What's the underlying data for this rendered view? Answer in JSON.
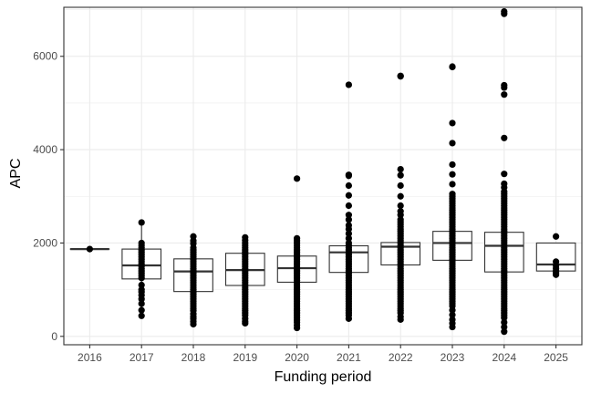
{
  "chart_data": {
    "type": "box",
    "xlabel": "Funding period",
    "ylabel": "APC",
    "ylim": [
      -180,
      7050
    ],
    "yticks": [
      0,
      2000,
      4000,
      6000
    ],
    "grid": true,
    "colors": {
      "box": "#333333",
      "point": "#000000",
      "grid": "#ebebeb",
      "panel_border": "#333333"
    },
    "categories": [
      "2016",
      "2017",
      "2018",
      "2019",
      "2020",
      "2021",
      "2022",
      "2023",
      "2024",
      "2025"
    ],
    "boxes": [
      {
        "category": "2016",
        "q1": 1870,
        "median": 1870,
        "q3": 1870,
        "whisker_low": 1870,
        "whisker_high": 1870,
        "points": [
          1870
        ]
      },
      {
        "category": "2017",
        "q1": 1230,
        "median": 1520,
        "q3": 1870,
        "whisker_low": 690,
        "whisker_high": 2440,
        "points": [
          2440,
          2000,
          1950,
          1900,
          1850,
          1800,
          1750,
          1700,
          1650,
          1600,
          1550,
          1500,
          1450,
          1400,
          1350,
          1300,
          1250,
          1100,
          1000,
          950,
          880,
          800,
          700,
          560,
          440
        ]
      },
      {
        "category": "2018",
        "q1": 960,
        "median": 1390,
        "q3": 1660,
        "whisker_low": 250,
        "whisker_high": 2140,
        "points": [
          2140,
          2050,
          1990,
          1900,
          1850,
          1800,
          1750,
          1700,
          1650,
          1600,
          1550,
          1500,
          1450,
          1400,
          1350,
          1300,
          1250,
          1200,
          1150,
          1100,
          1050,
          1000,
          950,
          900,
          850,
          800,
          750,
          700,
          650,
          600,
          550,
          480,
          420,
          380,
          320,
          260
        ]
      },
      {
        "category": "2019",
        "q1": 1090,
        "median": 1420,
        "q3": 1780,
        "whisker_low": 280,
        "whisker_high": 2120,
        "points": [
          2120,
          2060,
          2000,
          1950,
          1900,
          1850,
          1800,
          1750,
          1700,
          1650,
          1600,
          1550,
          1500,
          1450,
          1400,
          1350,
          1300,
          1250,
          1200,
          1150,
          1100,
          1050,
          1000,
          950,
          900,
          850,
          800,
          750,
          700,
          650,
          600,
          550,
          500,
          450,
          380,
          320,
          280
        ]
      },
      {
        "category": "2020",
        "q1": 1160,
        "median": 1460,
        "q3": 1720,
        "whisker_low": 160,
        "whisker_high": 2100,
        "points": [
          3380,
          2100,
          2050,
          2000,
          1950,
          1900,
          1850,
          1800,
          1750,
          1700,
          1650,
          1600,
          1550,
          1500,
          1450,
          1400,
          1350,
          1300,
          1250,
          1200,
          1150,
          1100,
          1050,
          1000,
          950,
          900,
          850,
          800,
          750,
          700,
          650,
          600,
          550,
          500,
          450,
          400,
          350,
          300,
          240,
          180
        ]
      },
      {
        "category": "2021",
        "q1": 1370,
        "median": 1800,
        "q3": 1940,
        "whisker_low": 370,
        "whisker_high": 2600,
        "points": [
          5390,
          3460,
          3440,
          3230,
          3020,
          2800,
          2600,
          2500,
          2380,
          2300,
          2200,
          2100,
          2000,
          1950,
          1900,
          1850,
          1800,
          1750,
          1700,
          1650,
          1600,
          1550,
          1500,
          1450,
          1400,
          1350,
          1300,
          1250,
          1200,
          1150,
          1100,
          1050,
          1000,
          950,
          900,
          850,
          800,
          750,
          700,
          650,
          600,
          550,
          500,
          450,
          380
        ]
      },
      {
        "category": "2022",
        "q1": 1530,
        "median": 1920,
        "q3": 2010,
        "whisker_low": 360,
        "whisker_high": 2680,
        "points": [
          5580,
          5570,
          3580,
          3450,
          3230,
          3000,
          2800,
          2680,
          2600,
          2500,
          2450,
          2400,
          2350,
          2300,
          2250,
          2200,
          2150,
          2100,
          2050,
          2000,
          1950,
          1900,
          1850,
          1800,
          1750,
          1700,
          1650,
          1600,
          1550,
          1500,
          1450,
          1400,
          1350,
          1300,
          1250,
          1200,
          1150,
          1100,
          1050,
          1000,
          950,
          900,
          850,
          800,
          750,
          700,
          650,
          600,
          550,
          500,
          420,
          360
        ]
      },
      {
        "category": "2023",
        "q1": 1630,
        "median": 2000,
        "q3": 2250,
        "whisker_low": 200,
        "whisker_high": 3000,
        "points": [
          5780,
          5770,
          4570,
          4140,
          3680,
          3470,
          3260,
          3050,
          3000,
          2950,
          2900,
          2850,
          2800,
          2750,
          2700,
          2650,
          2600,
          2550,
          2500,
          2450,
          2400,
          2350,
          2300,
          2250,
          2200,
          2150,
          2100,
          2050,
          2000,
          1950,
          1900,
          1850,
          1800,
          1750,
          1700,
          1650,
          1600,
          1550,
          1500,
          1450,
          1400,
          1350,
          1300,
          1250,
          1200,
          1150,
          1100,
          1050,
          1000,
          950,
          900,
          850,
          800,
          750,
          700,
          650,
          560,
          460,
          360,
          280,
          200
        ]
      },
      {
        "category": "2024",
        "q1": 1380,
        "median": 1940,
        "q3": 2230,
        "whisker_low": 90,
        "whisker_high": 3190,
        "points": [
          6960,
          6910,
          5380,
          5330,
          5180,
          4250,
          3480,
          3270,
          3190,
          3100,
          3050,
          3000,
          2950,
          2900,
          2850,
          2800,
          2750,
          2700,
          2650,
          2600,
          2550,
          2500,
          2450,
          2400,
          2350,
          2300,
          2250,
          2200,
          2150,
          2100,
          2050,
          2000,
          1950,
          1900,
          1850,
          1800,
          1750,
          1700,
          1650,
          1600,
          1550,
          1500,
          1450,
          1400,
          1350,
          1300,
          1250,
          1200,
          1150,
          1100,
          1050,
          1000,
          950,
          900,
          850,
          800,
          750,
          700,
          650,
          600,
          550,
          500,
          450,
          400,
          300,
          200,
          100
        ]
      },
      {
        "category": "2025",
        "q1": 1400,
        "median": 1540,
        "q3": 2000,
        "whisker_low": 1320,
        "whisker_high": 2000,
        "points": [
          2140,
          1600,
          1520,
          1460,
          1400,
          1360,
          1320
        ]
      }
    ]
  }
}
